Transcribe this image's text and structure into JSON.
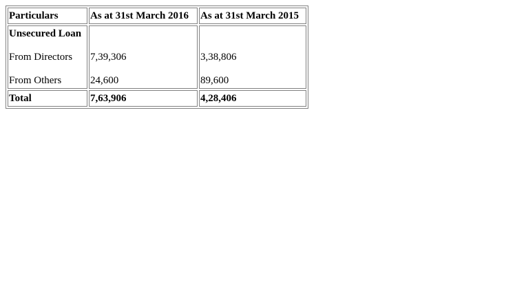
{
  "table": {
    "headers": [
      "Particulars",
      "As at 31st March 2016",
      "As at 31st March 2015"
    ],
    "section_label": "Unsecured Loan",
    "rows": [
      {
        "label": "From Directors",
        "y2016": "7,39,306",
        "y2015": "3,38,806"
      },
      {
        "label": "From Others",
        "y2016": "24,600",
        "y2015": "89,600"
      }
    ],
    "total": {
      "label": "Total",
      "y2016": "7,63,906",
      "y2015": "4,28,406"
    }
  }
}
